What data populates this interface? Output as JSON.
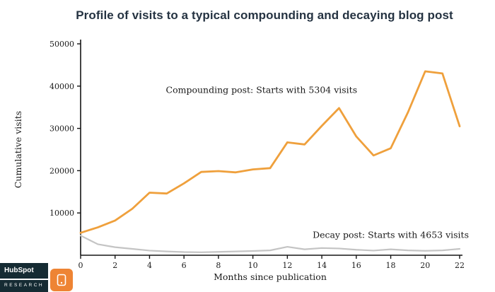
{
  "branding": {
    "name": "HubSpot",
    "division": "RESEARCH"
  },
  "chart_data": {
    "type": "line",
    "title": "Profile of visits to a typical compounding and decaying blog post",
    "xlabel": "Months since publication",
    "ylabel": "Cumulative visits",
    "xlim": [
      0,
      22
    ],
    "ylim": [
      0,
      50000
    ],
    "xticks": [
      0,
      2,
      4,
      6,
      8,
      10,
      12,
      14,
      16,
      18,
      20,
      22
    ],
    "yticks": [
      10000,
      20000,
      30000,
      40000,
      50000
    ],
    "grid": false,
    "legend_position": "none",
    "x": [
      0,
      1,
      2,
      3,
      4,
      5,
      6,
      7,
      8,
      9,
      10,
      11,
      12,
      13,
      14,
      15,
      16,
      17,
      18,
      19,
      20,
      21,
      22
    ],
    "series": [
      {
        "name": "Compounding post",
        "color": "#efa03c",
        "width": 2.8,
        "values": [
          5304,
          6600,
          8200,
          11000,
          14800,
          14600,
          17000,
          19700,
          19900,
          19600,
          20300,
          20600,
          26700,
          26200,
          30600,
          34800,
          28100,
          23600,
          25300,
          33800,
          43500,
          43000,
          30500
        ]
      },
      {
        "name": "Decay post",
        "color": "#c4c4c4",
        "width": 2.2,
        "values": [
          4653,
          2600,
          1900,
          1500,
          1100,
          900,
          750,
          700,
          800,
          900,
          1000,
          1150,
          2000,
          1400,
          1700,
          1600,
          1300,
          1100,
          1400,
          1150,
          1050,
          1150,
          1500
        ]
      }
    ],
    "annotations": [
      {
        "text": "Compounding post: Starts with 5304 visits",
        "x": 10.5,
        "y": 38400
      },
      {
        "text": "Decay post: Starts with 4653 visits",
        "x": 18.0,
        "y": 4100
      }
    ]
  }
}
